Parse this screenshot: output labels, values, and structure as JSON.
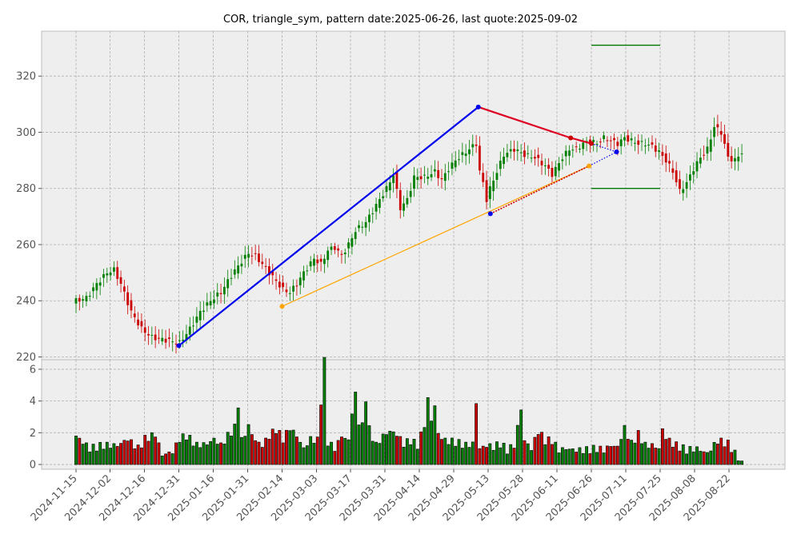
{
  "chart_data": {
    "type": "candlestick",
    "title": "COR, triangle_sym, pattern date:2025-06-26, last quote:2025-09-02",
    "price_axis": {
      "ylim": [
        219,
        336
      ],
      "ticks": [
        220,
        240,
        260,
        280,
        300,
        320
      ]
    },
    "volume_axis": {
      "ylim": [
        -0.3,
        6.6
      ],
      "ticks": [
        0,
        2,
        4,
        6
      ]
    },
    "x_ticks": [
      "2024-11-15",
      "2024-12-02",
      "2024-12-16",
      "2024-12-31",
      "2025-01-16",
      "2025-01-31",
      "2025-02-14",
      "2025-03-03",
      "2025-03-17",
      "2025-03-31",
      "2025-04-14",
      "2025-04-29",
      "2025-05-13",
      "2025-05-28",
      "2025-06-11",
      "2025-06-26",
      "2025-07-11",
      "2025-07-25",
      "2025-08-08",
      "2025-08-22"
    ],
    "grid": true,
    "close_anchors": [
      [
        0,
        240
      ],
      [
        3,
        241
      ],
      [
        6,
        246
      ],
      [
        9,
        250
      ],
      [
        11,
        251
      ],
      [
        13,
        246
      ],
      [
        16,
        236
      ],
      [
        19,
        230
      ],
      [
        22,
        227
      ],
      [
        26,
        226
      ],
      [
        30,
        225
      ],
      [
        33,
        230
      ],
      [
        36,
        236
      ],
      [
        39,
        240
      ],
      [
        42,
        243
      ],
      [
        45,
        249
      ],
      [
        48,
        254
      ],
      [
        50,
        257
      ],
      [
        52,
        256
      ],
      [
        54,
        253
      ],
      [
        56,
        250
      ],
      [
        58,
        247
      ],
      [
        60,
        244
      ],
      [
        62,
        243
      ],
      [
        64,
        246
      ],
      [
        66,
        250
      ],
      [
        69,
        255
      ],
      [
        71,
        253
      ],
      [
        73,
        258
      ],
      [
        75,
        259
      ],
      [
        77,
        256
      ],
      [
        79,
        260
      ],
      [
        81,
        265
      ],
      [
        84,
        268
      ],
      [
        86,
        272
      ],
      [
        88,
        276
      ],
      [
        90,
        280
      ],
      [
        92,
        285
      ],
      [
        93,
        279
      ],
      [
        94,
        273
      ],
      [
        96,
        276
      ],
      [
        98,
        284
      ],
      [
        101,
        284
      ],
      [
        104,
        286
      ],
      [
        106,
        283
      ],
      [
        108,
        287
      ],
      [
        110,
        290
      ],
      [
        112,
        292
      ],
      [
        114,
        294
      ],
      [
        116,
        296
      ],
      [
        117,
        286
      ],
      [
        118,
        282
      ],
      [
        119,
        276
      ],
      [
        120,
        280
      ],
      [
        122,
        286
      ],
      [
        124,
        292
      ],
      [
        127,
        294
      ],
      [
        130,
        292
      ],
      [
        133,
        291
      ],
      [
        136,
        288
      ],
      [
        138,
        285
      ],
      [
        141,
        291
      ],
      [
        143,
        294
      ],
      [
        145,
        294
      ],
      [
        147,
        296
      ],
      [
        149,
        297
      ],
      [
        151,
        296
      ],
      [
        153,
        298
      ],
      [
        155,
        297
      ],
      [
        157,
        296
      ],
      [
        159,
        298
      ],
      [
        161,
        297
      ],
      [
        163,
        296
      ],
      [
        165,
        296
      ],
      [
        167,
        295
      ],
      [
        169,
        293
      ],
      [
        171,
        290
      ],
      [
        173,
        286
      ],
      [
        175,
        279
      ],
      [
        177,
        282
      ],
      [
        179,
        287
      ],
      [
        181,
        291
      ],
      [
        183,
        294
      ],
      [
        185,
        302
      ],
      [
        187,
        300
      ],
      [
        189,
        291
      ],
      [
        191,
        290
      ],
      [
        193,
        293
      ]
    ],
    "volume_anchors": [
      [
        0,
        1.8
      ],
      [
        4,
        1.0
      ],
      [
        8,
        1.2
      ],
      [
        12,
        1.2
      ],
      [
        15,
        1.6
      ],
      [
        18,
        1.0
      ],
      [
        20,
        1.6
      ],
      [
        23,
        1.9
      ],
      [
        25,
        0.6
      ],
      [
        28,
        0.8
      ],
      [
        30,
        1.6
      ],
      [
        32,
        1.8
      ],
      [
        35,
        1.2
      ],
      [
        38,
        1.3
      ],
      [
        40,
        1.6
      ],
      [
        42,
        1.2
      ],
      [
        44,
        1.8
      ],
      [
        46,
        2.3
      ],
      [
        47,
        3.8
      ],
      [
        48,
        1.5
      ],
      [
        50,
        2.4
      ],
      [
        52,
        1.5
      ],
      [
        54,
        1.2
      ],
      [
        56,
        1.8
      ],
      [
        58,
        2.2
      ],
      [
        60,
        1.6
      ],
      [
        62,
        2.3
      ],
      [
        64,
        1.8
      ],
      [
        66,
        1.0
      ],
      [
        68,
        1.6
      ],
      [
        70,
        1.5
      ],
      [
        72,
        6.5
      ],
      [
        73,
        1.4
      ],
      [
        75,
        1.0
      ],
      [
        77,
        1.8
      ],
      [
        79,
        1.5
      ],
      [
        80,
        3.3
      ],
      [
        81,
        4.4
      ],
      [
        82,
        2.7
      ],
      [
        83,
        2.4
      ],
      [
        84,
        4.2
      ],
      [
        85,
        2.2
      ],
      [
        87,
        1.2
      ],
      [
        89,
        1.8
      ],
      [
        91,
        2.1
      ],
      [
        93,
        1.9
      ],
      [
        95,
        1.3
      ],
      [
        97,
        1.5
      ],
      [
        99,
        1.2
      ],
      [
        101,
        2.5
      ],
      [
        102,
        4.1
      ],
      [
        103,
        2.8
      ],
      [
        104,
        3.7
      ],
      [
        105,
        1.9
      ],
      [
        107,
        1.5
      ],
      [
        110,
        1.4
      ],
      [
        113,
        1.2
      ],
      [
        115,
        1.3
      ],
      [
        116,
        3.9
      ],
      [
        117,
        1.0
      ],
      [
        119,
        1.2
      ],
      [
        121,
        1.1
      ],
      [
        123,
        1.3
      ],
      [
        125,
        0.9
      ],
      [
        127,
        1.2
      ],
      [
        129,
        3.5
      ],
      [
        130,
        1.5
      ],
      [
        132,
        1.0
      ],
      [
        134,
        2.1
      ],
      [
        136,
        1.5
      ],
      [
        138,
        1.5
      ],
      [
        140,
        0.9
      ],
      [
        142,
        1.0
      ],
      [
        145,
        0.9
      ],
      [
        148,
        0.9
      ],
      [
        151,
        1.0
      ],
      [
        153,
        0.9
      ],
      [
        155,
        1.2
      ],
      [
        157,
        1.1
      ],
      [
        159,
        2.3
      ],
      [
        161,
        1.3
      ],
      [
        163,
        1.9
      ],
      [
        165,
        1.2
      ],
      [
        167,
        1.2
      ],
      [
        169,
        1.0
      ],
      [
        170,
        2.2
      ],
      [
        171,
        1.7
      ],
      [
        173,
        1.3
      ],
      [
        175,
        1.1
      ],
      [
        177,
        0.9
      ],
      [
        180,
        1.0
      ],
      [
        183,
        0.7
      ],
      [
        186,
        1.5
      ],
      [
        189,
        1.3
      ],
      [
        193,
        0.1
      ]
    ],
    "pattern": {
      "upper_line": [
        [
          "2024-12-31",
          224
        ],
        [
          "2025-05-09",
          309
        ],
        [
          "2025-06-17",
          298
        ],
        [
          "2025-06-26",
          296
        ]
      ],
      "lower_line": [
        [
          "2025-02-14",
          238
        ],
        [
          "2025-05-14",
          271
        ],
        [
          "2025-06-25",
          288
        ]
      ],
      "projection_upper": [
        [
          "2025-06-26",
          296
        ],
        [
          "2025-07-07",
          293
        ]
      ],
      "projection_lower": [
        [
          "2025-06-25",
          288
        ],
        [
          "2025-07-07",
          293
        ]
      ],
      "target_upper": 331,
      "target_lower": 280
    }
  }
}
